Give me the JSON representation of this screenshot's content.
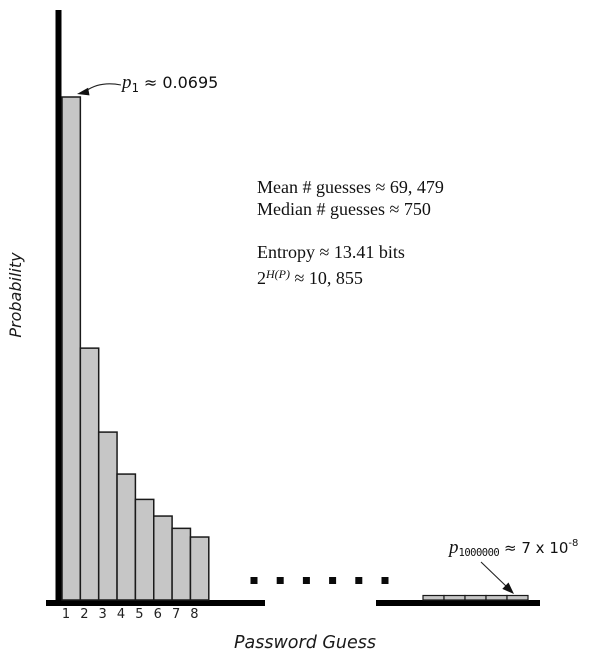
{
  "figure": {
    "x_axis_label": "Password Guess",
    "y_axis_label": "Probability"
  },
  "stats_box": {
    "line_mean": "Mean # guesses ≈ 69, 479",
    "line_median": "Median # guesses ≈ 750",
    "line_entropy": "Entropy ≈ 13.41 bits",
    "line_power": {
      "base": "2",
      "sup": "H(P)",
      "rest": " ≈ 10, 855"
    }
  },
  "annotations": {
    "p1": {
      "symbol": "p",
      "sub": "1",
      "value": " ≈ 0.0695"
    },
    "p_last": {
      "symbol": "p",
      "sub": "1000000",
      "value": " ≈ 7 x 10",
      "sup": "-8"
    }
  },
  "chart_data": {
    "type": "bar",
    "title": "",
    "xlabel": "Password Guess",
    "ylabel": "Probability",
    "categories": [
      "1",
      "2",
      "3",
      "4",
      "5",
      "6",
      "7",
      "8"
    ],
    "values": [
      0.0695,
      0.0348,
      0.0232,
      0.0174,
      0.0139,
      0.0116,
      0.0099,
      0.0087
    ],
    "first_guess_probability": 0.0695,
    "millionth_guess_probability": 7e-08,
    "tail_segment_count": 5,
    "ellipsis_dot_count": 6,
    "axis_break": true,
    "ylim": [
      0,
      0.075
    ],
    "grid": false,
    "legend": "none",
    "bar_fill": "#c6c6c6",
    "bar_stroke": "#1a1a1a",
    "axis_color": "#000000",
    "annotation_notes": [
      "p_1 ≈ 0.0695 points to top of first bar",
      "p_1000000 ≈ 7 x 10^-8 points to flat tail bars near guess 1,000,000",
      "Mean # guesses ≈ 69,479; Median # guesses ≈ 750; Entropy ≈ 13.41 bits; 2^H(P) ≈ 10,855"
    ]
  }
}
